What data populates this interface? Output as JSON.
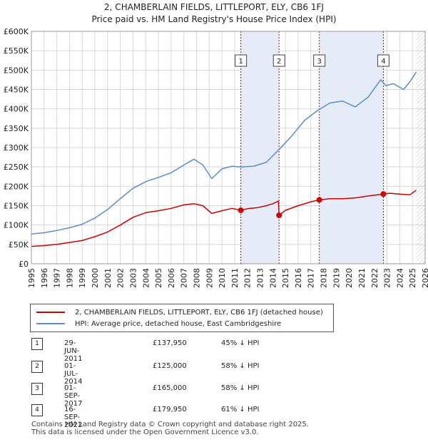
{
  "title": "2, CHAMBERLAIN FIELDS, LITTLEPORT, ELY, CB6 1FJ",
  "subtitle": "Price paid vs. HM Land Registry's House Price Index (HPI)",
  "colors": {
    "property": "#cc0000",
    "hpi": "#5b8ec9",
    "shade": "#e6ecf7"
  },
  "chart_data": {
    "type": "line",
    "xlim": [
      1995,
      2026
    ],
    "ylim": [
      0,
      600000
    ],
    "x_ticks": [
      "1995",
      "1996",
      "1997",
      "1998",
      "1999",
      "2000",
      "2001",
      "2002",
      "2003",
      "2004",
      "2005",
      "2006",
      "2007",
      "2008",
      "2009",
      "2010",
      "2011",
      "2012",
      "2013",
      "2014",
      "2015",
      "2016",
      "2017",
      "2018",
      "2019",
      "2020",
      "2021",
      "2022",
      "2023",
      "2024",
      "2025",
      "2026"
    ],
    "y_ticks": [
      {
        "value": 0,
        "label": "£0"
      },
      {
        "value": 50000,
        "label": "£50K"
      },
      {
        "value": 100000,
        "label": "£100K"
      },
      {
        "value": 150000,
        "label": "£150K"
      },
      {
        "value": 200000,
        "label": "£200K"
      },
      {
        "value": 250000,
        "label": "£250K"
      },
      {
        "value": 300000,
        "label": "£300K"
      },
      {
        "value": 350000,
        "label": "£350K"
      },
      {
        "value": 400000,
        "label": "£400K"
      },
      {
        "value": 450000,
        "label": "£450K"
      },
      {
        "value": 500000,
        "label": "£500K"
      },
      {
        "value": 550000,
        "label": "£550K"
      },
      {
        "value": 600000,
        "label": "£600K"
      }
    ],
    "shaded_spans": [
      [
        2011.49,
        2014.5
      ],
      [
        2017.67,
        2022.71
      ]
    ],
    "hatch_after": 2025.3,
    "series": [
      {
        "name": "2, CHAMBERLAIN FIELDS, LITTLEPORT, ELY, CB6 1FJ (detached house)",
        "key": "property",
        "x": [
          1995,
          1996,
          1997,
          1998,
          1999,
          2000,
          2001,
          2002,
          2003,
          2004,
          2005,
          2006,
          2007,
          2007.8,
          2008.5,
          2009.2,
          2010,
          2010.8,
          2011.49,
          2012,
          2012.8,
          2013.5,
          2014.0,
          2014.45,
          2014.5,
          2015,
          2016,
          2017,
          2017.67,
          2018.5,
          2019.5,
          2020.5,
          2021.5,
          2022.71,
          2023.2,
          2024,
          2024.8,
          2025.3
        ],
        "y": [
          45000,
          47000,
          50000,
          55000,
          60000,
          70000,
          82000,
          100000,
          120000,
          132000,
          137000,
          143000,
          152000,
          155000,
          150000,
          130000,
          137000,
          143000,
          137950,
          142000,
          145000,
          150000,
          155000,
          162000,
          125000,
          138000,
          150000,
          160000,
          165000,
          168000,
          168000,
          170000,
          175000,
          179950,
          182000,
          180000,
          178000,
          190000
        ]
      },
      {
        "name": "HPI: Average price, detached house, East Cambridgeshire",
        "key": "hpi",
        "x": [
          1995,
          1996,
          1997,
          1998,
          1999,
          2000,
          2001,
          2002,
          2003,
          2004,
          2005,
          2006,
          2007,
          2007.8,
          2008.5,
          2009.2,
          2010,
          2010.8,
          2011.5,
          2012.5,
          2013.5,
          2014.5,
          2015.5,
          2016.5,
          2017.5,
          2018.5,
          2019.5,
          2020.5,
          2021.5,
          2022.5,
          2022.9,
          2023.5,
          2024.3,
          2024.8,
          2025.3
        ],
        "y": [
          77000,
          80000,
          86000,
          93000,
          102000,
          118000,
          140000,
          168000,
          195000,
          212000,
          223000,
          235000,
          255000,
          270000,
          255000,
          220000,
          245000,
          252000,
          250000,
          252000,
          262000,
          295000,
          330000,
          370000,
          395000,
          415000,
          420000,
          405000,
          430000,
          475000,
          460000,
          465000,
          450000,
          470000,
          495000
        ]
      }
    ],
    "sales": [
      {
        "label": "1",
        "date": "29-JUN-2011",
        "x": 2011.49,
        "price": 137950,
        "price_label": "£137,950",
        "hpi_note": "45% ↓ HPI"
      },
      {
        "label": "2",
        "date": "01-JUL-2014",
        "x": 2014.5,
        "price": 125000,
        "price_label": "£125,000",
        "hpi_note": "58% ↓ HPI"
      },
      {
        "label": "3",
        "date": "01-SEP-2017",
        "x": 2017.67,
        "price": 165000,
        "price_label": "£165,000",
        "hpi_note": "58% ↓ HPI"
      },
      {
        "label": "4",
        "date": "16-SEP-2022",
        "x": 2022.71,
        "price": 179950,
        "price_label": "£179,950",
        "hpi_note": "61% ↓ HPI"
      }
    ]
  },
  "legend": {
    "property": "2, CHAMBERLAIN FIELDS, LITTLEPORT, ELY, CB6 1FJ (detached house)",
    "hpi": "HPI: Average price, detached house, East Cambridgeshire"
  },
  "footer": {
    "line1": "Contains HM Land Registry data © Crown copyright and database right 2025.",
    "line2": "This data is licensed under the Open Government Licence v3.0."
  }
}
